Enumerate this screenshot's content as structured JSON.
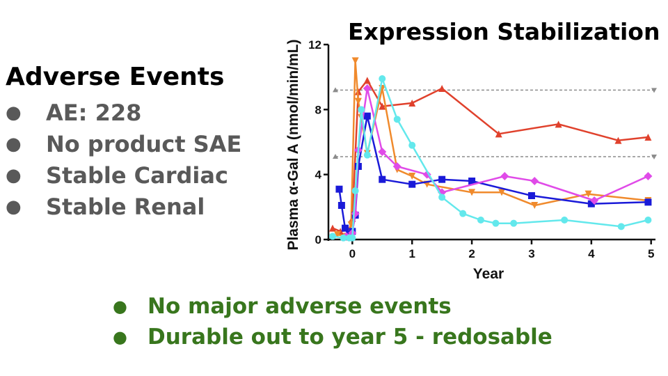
{
  "left_panel": {
    "title": "Adverse Events",
    "bullets": [
      "AE: 228",
      "No product SAE",
      "Stable Cardiac",
      "Stable Renal"
    ],
    "bullet_char": "●"
  },
  "chart_title": "Expression Stabilization",
  "bottom_points": {
    "bullets": [
      "No major adverse events",
      "Durable out to year 5 - redosable"
    ],
    "bullet_char": "●",
    "color": "#38761d"
  },
  "chart_data": {
    "type": "line",
    "xlabel": "Year",
    "ylabel": "Plasma α-Gal A (nmol/min/mL)",
    "xlim": [
      -0.4,
      5.05
    ],
    "ylim": [
      0,
      12
    ],
    "xticks": [
      0,
      1,
      2,
      3,
      4,
      5
    ],
    "yticks": [
      0,
      4,
      8,
      12
    ],
    "grid": false,
    "reference_lines": [
      {
        "y": 9.2,
        "style": "dashed",
        "color": "#8c8c8c"
      },
      {
        "y": 5.1,
        "style": "dashed",
        "color": "#8c8c8c"
      }
    ],
    "series": [
      {
        "color": "#e0412c",
        "marker": "triangle-up",
        "x": [
          -0.33,
          -0.2,
          -0.05,
          0.0,
          0.1,
          0.25,
          0.5,
          1.0,
          1.5,
          2.45,
          3.45,
          4.45,
          4.95
        ],
        "y": [
          0.7,
          0.5,
          0.6,
          1.3,
          9.1,
          9.8,
          8.2,
          8.4,
          9.3,
          6.5,
          7.1,
          6.1,
          6.3
        ]
      },
      {
        "color": "#f08a2c",
        "marker": "triangle-down",
        "x": [
          -0.25,
          -0.1,
          -0.02,
          0.05,
          0.1,
          0.15,
          0.25,
          0.5,
          0.75,
          1.0,
          1.25,
          2.0,
          2.5,
          3.05,
          3.95,
          4.95
        ],
        "y": [
          0.3,
          0.2,
          0.9,
          11.0,
          8.5,
          7.5,
          5.3,
          9.3,
          4.3,
          3.9,
          3.4,
          2.9,
          2.9,
          2.1,
          2.8,
          2.4
        ]
      },
      {
        "color": "#1a1ad8",
        "marker": "square",
        "x": [
          -0.22,
          -0.18,
          -0.12,
          -0.05,
          0.0,
          0.05,
          0.1,
          0.25,
          0.5,
          1.0,
          1.5,
          2.0,
          3.0,
          4.0,
          4.95
        ],
        "y": [
          3.1,
          2.1,
          0.7,
          0.3,
          0.5,
          1.5,
          4.5,
          7.6,
          3.7,
          3.4,
          3.7,
          3.6,
          2.7,
          2.2,
          2.3
        ]
      },
      {
        "color": "#e04be8",
        "marker": "diamond",
        "x": [
          -0.1,
          0.0,
          0.05,
          0.1,
          0.25,
          0.5,
          0.75,
          1.25,
          1.5,
          2.55,
          3.05,
          4.05,
          4.95
        ],
        "y": [
          0.2,
          0.4,
          1.6,
          5.5,
          9.3,
          5.4,
          4.5,
          4.0,
          2.9,
          3.9,
          3.6,
          2.4,
          3.9
        ]
      },
      {
        "color": "#63e8ec",
        "marker": "circle",
        "x": [
          -0.33,
          -0.15,
          -0.05,
          0.0,
          0.05,
          0.15,
          0.25,
          0.5,
          0.75,
          1.0,
          1.5,
          1.85,
          2.15,
          2.4,
          2.7,
          3.55,
          4.5,
          4.95
        ],
        "y": [
          0.2,
          0.1,
          0.1,
          0.1,
          3.0,
          8.0,
          5.2,
          9.9,
          7.4,
          5.8,
          2.6,
          1.6,
          1.2,
          1.0,
          1.0,
          1.2,
          0.8,
          1.2
        ]
      }
    ]
  }
}
